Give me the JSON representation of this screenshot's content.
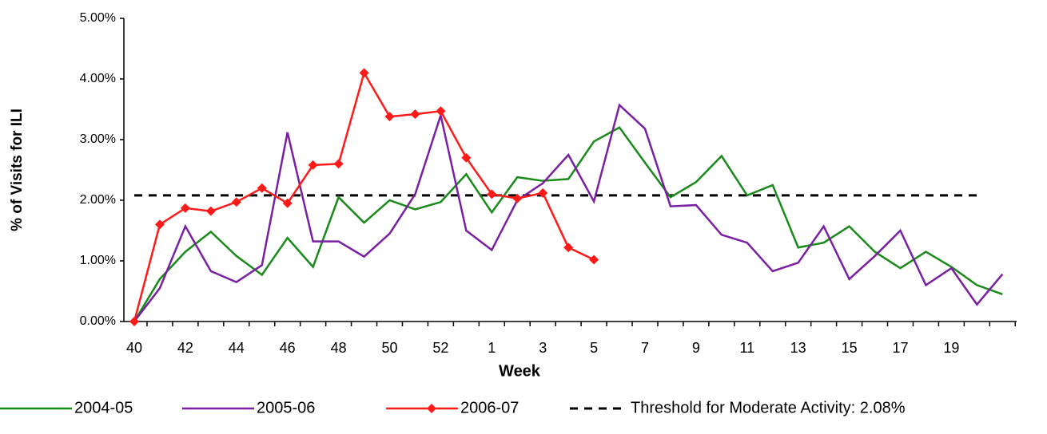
{
  "chart_data": {
    "type": "line",
    "y_label": "% of Visits for ILI",
    "x_label": "Week",
    "categories": [
      "40",
      null,
      "42",
      null,
      "44",
      null,
      "46",
      null,
      "48",
      null,
      "50",
      null,
      "52",
      null,
      "1",
      null,
      "3",
      null,
      "5",
      null,
      "7",
      null,
      "9",
      null,
      "11",
      null,
      "13",
      null,
      "15",
      null,
      "17",
      null,
      "19",
      null,
      null
    ],
    "series": [
      {
        "name": "2004-05",
        "color": "#1a8a1a",
        "marker": false,
        "values": [
          0.0,
          0.7,
          1.15,
          1.48,
          1.08,
          0.77,
          1.38,
          0.9,
          2.05,
          1.63,
          2.0,
          1.85,
          1.97,
          2.43,
          1.8,
          2.38,
          2.32,
          2.35,
          2.97,
          3.2,
          2.62,
          2.05,
          2.3,
          2.73,
          2.08,
          2.25,
          1.22,
          1.3,
          1.57,
          1.15,
          0.88,
          1.15,
          0.9,
          0.6,
          0.45
        ]
      },
      {
        "name": "2005-06",
        "color": "#7a1fa2",
        "marker": false,
        "values": [
          0.0,
          0.55,
          1.57,
          0.83,
          0.65,
          0.93,
          3.12,
          1.32,
          1.32,
          1.07,
          1.45,
          2.1,
          3.4,
          1.5,
          1.18,
          2.0,
          2.28,
          2.75,
          1.98,
          3.57,
          3.18,
          1.9,
          1.92,
          1.43,
          1.3,
          0.83,
          0.97,
          1.57,
          0.7,
          1.08,
          1.5,
          0.6,
          0.88,
          0.28,
          0.78
        ]
      },
      {
        "name": "2006-07",
        "color": "#ff1a1a",
        "marker": true,
        "values": [
          0.0,
          1.6,
          1.87,
          1.82,
          1.97,
          2.2,
          1.95,
          2.58,
          2.6,
          4.1,
          3.38,
          3.42,
          3.47,
          2.7,
          2.1,
          2.03,
          2.12,
          1.22,
          1.02,
          null,
          null,
          null,
          null,
          null,
          null,
          null,
          null,
          null,
          null,
          null,
          null,
          null,
          null,
          null,
          null
        ]
      }
    ],
    "threshold": {
      "value": 2.08,
      "label": "Threshold for Moderate Activity: 2.08%",
      "color": "#000000"
    },
    "ylim": [
      0,
      5
    ],
    "yticks": [
      {
        "value": 0,
        "label": "0.00%"
      },
      {
        "value": 1,
        "label": "1.00%"
      },
      {
        "value": 2,
        "label": "2.00%"
      },
      {
        "value": 3,
        "label": "3.00%"
      },
      {
        "value": 4,
        "label": "4.00%"
      },
      {
        "value": 5,
        "label": "5.00%"
      }
    ]
  }
}
